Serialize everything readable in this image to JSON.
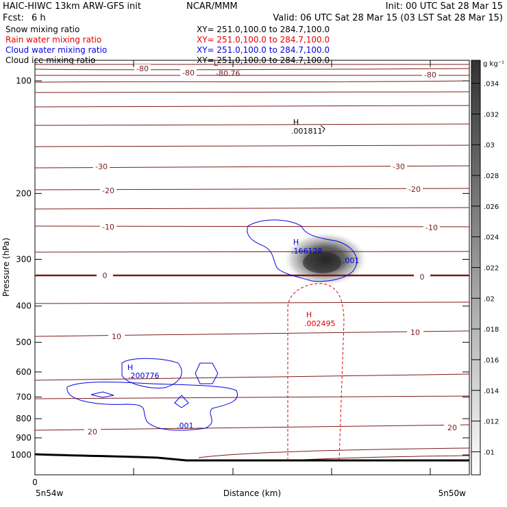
{
  "header": {
    "model": "HAIC-HIWC 13km ARW-GFS init",
    "org": "NCAR/MMM",
    "init": "Init: 00 UTC Sat 28 Mar 15",
    "fcst_label": "Fcst:",
    "fcst_value": "6 h",
    "valid": "Valid: 06 UTC Sat 28 Mar 15 (03 LST Sat 28 Mar 15)"
  },
  "fields": [
    {
      "name": "Snow mixing ratio",
      "xy": "XY= 251.0,100.0 to 284.7,100.0",
      "color": "#000000"
    },
    {
      "name": "Rain water mixing ratio",
      "xy": "XY= 251.0,100.0 to 284.7,100.0",
      "color": "#e00000"
    },
    {
      "name": "Cloud water mixing ratio",
      "xy": "XY= 251.0,100.0 to 284.7,100.0",
      "color": "#0000e0"
    },
    {
      "name": "Cloud ice mixing ratio",
      "xy": "XY= 251.0,100.0 to 284.7,100.0",
      "color": "#000000"
    }
  ],
  "chart_data": {
    "type": "contour",
    "xlabel": "Distance (km)",
    "ylabel": "Pressure (hPa)",
    "yscale": "log",
    "ylim": [
      1050,
      80
    ],
    "y_ticks": [
      100,
      200,
      300,
      400,
      500,
      600,
      700,
      800,
      900,
      1000
    ],
    "x_tick_label": "0",
    "x_left_label": "5n54w",
    "x_right_label": "5n50w",
    "colorbar": {
      "unit": "g kg⁻¹",
      "ticks": [
        ".01",
        ".012",
        ".014",
        ".016",
        ".018",
        ".02",
        ".022",
        ".024",
        ".026",
        ".028",
        ".03",
        ".032",
        ".034"
      ]
    },
    "temperature_contours": [
      {
        "value": "-80",
        "color": "#7a1a1a"
      },
      {
        "value": "-30",
        "color": "#7a1a1a"
      },
      {
        "value": "-20",
        "color": "#7a1a1a"
      },
      {
        "value": "-10",
        "color": "#7a1a1a"
      },
      {
        "value": "0",
        "color": "#7a1a1a"
      },
      {
        "value": "10",
        "color": "#7a1a1a"
      },
      {
        "value": "20",
        "color": "#7a1a1a"
      }
    ],
    "annotations": [
      {
        "text": "-80.76",
        "kind": "min",
        "marker": "L",
        "color": "#7a1a1a"
      },
      {
        "text": ".001811",
        "kind": "max",
        "marker": "H",
        "color": "#000000"
      },
      {
        "text": ".166128",
        "kind": "max",
        "marker": "H",
        "color": "#0000e0"
      },
      {
        "text": ".001",
        "kind": "contour",
        "color": "#0000e0"
      },
      {
        "text": ".002495",
        "kind": "max",
        "marker": "H",
        "color": "#e00000"
      },
      {
        "text": ".200776",
        "kind": "max",
        "marker": "H",
        "color": "#0000e0"
      },
      {
        "text": ".001",
        "kind": "contour",
        "color": "#0000e0"
      }
    ]
  }
}
